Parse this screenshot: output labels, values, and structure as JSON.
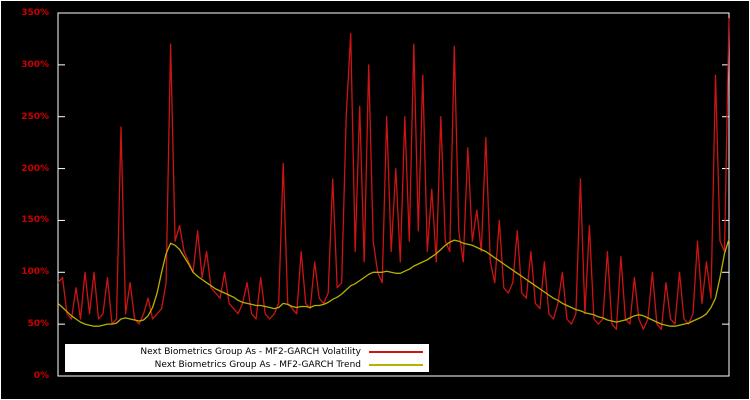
{
  "chart_data": {
    "type": "line",
    "title": "",
    "xlabel": "",
    "ylabel": "",
    "ylim": [
      0,
      350
    ],
    "y_ticks": [
      0,
      50,
      100,
      150,
      200,
      250,
      300,
      350
    ],
    "y_tick_labels": [
      "0%",
      "50%",
      "100%",
      "150%",
      "200%",
      "250%",
      "300%",
      "350%"
    ],
    "grid": false,
    "legend_position": "bottom-left",
    "background_color": "#000000",
    "frame_color": "#ffffff",
    "tick_label_color": "#cc0000",
    "series": [
      {
        "name": "Next Biometrics Group As - MF2-GARCH Volatility",
        "color": "#cc1414",
        "values": [
          90,
          95,
          60,
          55,
          85,
          55,
          100,
          60,
          100,
          55,
          60,
          95,
          50,
          55,
          240,
          60,
          90,
          55,
          50,
          60,
          75,
          55,
          60,
          65,
          90,
          320,
          130,
          145,
          120,
          110,
          100,
          140,
          95,
          120,
          85,
          80,
          75,
          100,
          70,
          65,
          60,
          70,
          90,
          60,
          55,
          95,
          60,
          55,
          60,
          70,
          205,
          70,
          65,
          60,
          120,
          70,
          65,
          110,
          75,
          70,
          80,
          190,
          85,
          90,
          250,
          330,
          120,
          260,
          110,
          300,
          130,
          100,
          90,
          250,
          120,
          200,
          110,
          250,
          130,
          320,
          140,
          290,
          120,
          180,
          110,
          250,
          130,
          120,
          318,
          140,
          110,
          220,
          130,
          160,
          120,
          230,
          110,
          90,
          150,
          85,
          80,
          90,
          140,
          80,
          75,
          120,
          70,
          65,
          110,
          60,
          55,
          70,
          100,
          55,
          50,
          60,
          190,
          60,
          145,
          55,
          50,
          55,
          120,
          50,
          45,
          115,
          55,
          50,
          95,
          55,
          45,
          55,
          100,
          50,
          45,
          90,
          55,
          50,
          100,
          55,
          50,
          60,
          130,
          70,
          110,
          75,
          290,
          130,
          120,
          345
        ]
      },
      {
        "name": "Next Biometrics Group As - MF2-GARCH Trend",
        "color": "#b8b000",
        "values": [
          70,
          66,
          62,
          58,
          55,
          52,
          50,
          49,
          48,
          48,
          49,
          50,
          50,
          51,
          55,
          56,
          55,
          54,
          53,
          54,
          58,
          66,
          80,
          100,
          118,
          128,
          126,
          122,
          115,
          108,
          100,
          96,
          93,
          90,
          87,
          84,
          82,
          80,
          78,
          76,
          73,
          71,
          70,
          69,
          68,
          68,
          67,
          66,
          65,
          66,
          70,
          69,
          67,
          66,
          67,
          67,
          66,
          68,
          68,
          69,
          71,
          74,
          76,
          79,
          83,
          87,
          89,
          92,
          95,
          98,
          100,
          100,
          100,
          101,
          100,
          99,
          99,
          101,
          103,
          106,
          108,
          110,
          112,
          115,
          118,
          122,
          126,
          129,
          131,
          130,
          128,
          127,
          126,
          124,
          122,
          120,
          117,
          114,
          111,
          108,
          105,
          102,
          99,
          96,
          93,
          90,
          87,
          84,
          81,
          78,
          75,
          73,
          70,
          68,
          66,
          64,
          63,
          61,
          60,
          59,
          57,
          56,
          54,
          53,
          52,
          53,
          54,
          56,
          58,
          59,
          58,
          56,
          54,
          52,
          50,
          49,
          48,
          48,
          49,
          50,
          51,
          53,
          55,
          57,
          60,
          66,
          75,
          95,
          118,
          132
        ]
      }
    ]
  }
}
